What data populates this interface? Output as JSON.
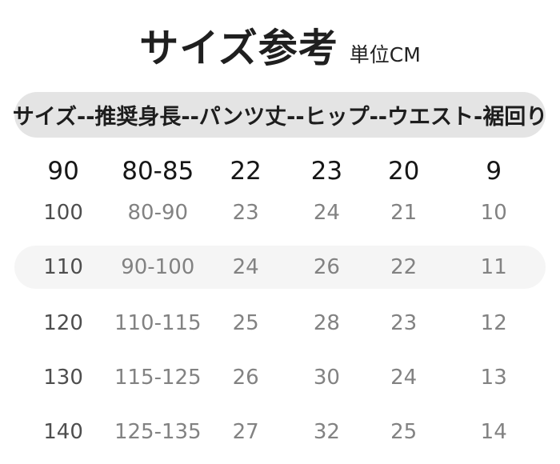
{
  "title": {
    "text": "サイズ参考",
    "unit_label": "単位CM"
  },
  "chart_data": {
    "type": "table",
    "title": "サイズ参考",
    "subtitle": "単位CM",
    "header_label": "サイズ--推奨身長--パンツ丈--ヒップ--ウエスト-裾回り",
    "columns": [
      "サイズ",
      "推奨身長",
      "パンツ丈",
      "ヒップ",
      "ウエスト",
      "裾回り"
    ],
    "rows": [
      [
        "90",
        "80-85",
        "22",
        "23",
        "20",
        "9"
      ],
      [
        "100",
        "80-90",
        "23",
        "24",
        "21",
        "10"
      ],
      [
        "110",
        "90-100",
        "24",
        "26",
        "22",
        "11"
      ],
      [
        "120",
        "110-115",
        "25",
        "28",
        "23",
        "12"
      ],
      [
        "130",
        "115-125",
        "26",
        "30",
        "24",
        "13"
      ],
      [
        "140",
        "125-135",
        "27",
        "32",
        "25",
        "14"
      ]
    ],
    "highlighted_row_index": 2,
    "emphasized_row_index": 0
  },
  "colors": {
    "background": "#ffffff",
    "header_pill_bg": "#e4e4e4",
    "highlight_row_bg": "#f5f5f5",
    "title_text": "#1f1f1f",
    "primary_row_text": "#161616",
    "size_column_text": "#4e4e4e",
    "cell_text": "#828282"
  }
}
